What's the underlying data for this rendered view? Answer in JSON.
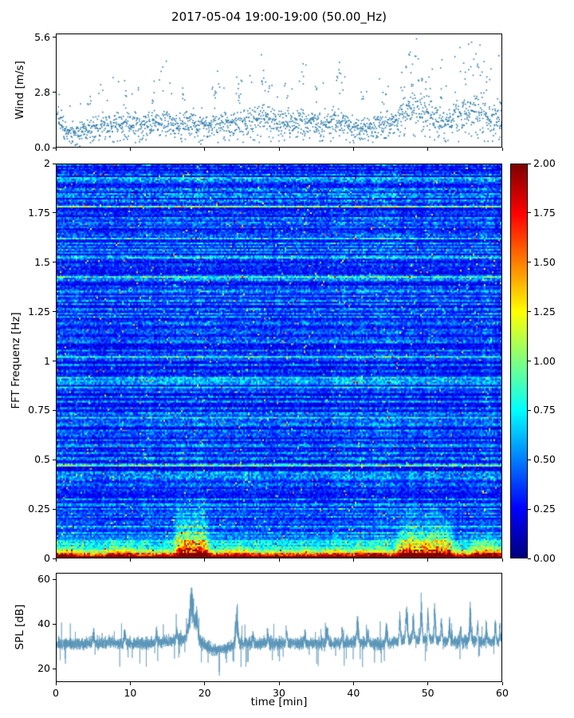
{
  "title": "2017-05-04 19:00-19:00 (50.00_Hz)",
  "xlabel": "time [min]",
  "xticks": {
    "values": [
      0,
      10,
      20,
      30,
      40,
      50,
      60
    ],
    "labels": [
      "0",
      "10",
      "20",
      "30",
      "40",
      "50",
      "60"
    ]
  },
  "chart_data": [
    {
      "type": "scatter",
      "name": "wind-speed",
      "ylabel": "Wind [m/s]",
      "xlim": [
        0,
        60
      ],
      "ylim": [
        0,
        5.8
      ],
      "yticks": {
        "values": [
          0,
          2.8,
          5.6
        ],
        "labels": [
          "0.0",
          "2.8",
          "5.6"
        ]
      },
      "marker_color": "#2878a8",
      "n_points": 1750,
      "seed": 11,
      "envelope": {
        "x": [
          0,
          1.5,
          3,
          5,
          8,
          11,
          14,
          17,
          20,
          23,
          26,
          28,
          30,
          33,
          36,
          38,
          40,
          43,
          45,
          47,
          49,
          51,
          53,
          55,
          57,
          59,
          60
        ],
        "mean": [
          2.1,
          1.0,
          1.2,
          1.4,
          1.5,
          1.6,
          1.7,
          1.6,
          1.5,
          1.6,
          1.7,
          2.1,
          1.7,
          1.8,
          1.6,
          1.9,
          1.4,
          1.5,
          1.7,
          2.4,
          2.6,
          2.0,
          1.8,
          2.4,
          2.6,
          2.0,
          1.8
        ]
      },
      "spikes": [
        {
          "x": 4.5,
          "v": 2.9
        },
        {
          "x": 9,
          "v": 2.8
        },
        {
          "x": 13,
          "v": 3.0
        },
        {
          "x": 17,
          "v": 3.2
        },
        {
          "x": 21,
          "v": 3.3
        },
        {
          "x": 24.5,
          "v": 3.4
        },
        {
          "x": 27.8,
          "v": 4.3
        },
        {
          "x": 28.3,
          "v": 3.8
        },
        {
          "x": 31,
          "v": 3.4
        },
        {
          "x": 33,
          "v": 4.6
        },
        {
          "x": 35,
          "v": 3.3
        },
        {
          "x": 38,
          "v": 4.5
        },
        {
          "x": 38.3,
          "v": 3.9
        },
        {
          "x": 41,
          "v": 2.9
        },
        {
          "x": 44,
          "v": 3.1
        },
        {
          "x": 46.5,
          "v": 4.0
        },
        {
          "x": 47.3,
          "v": 5.0
        },
        {
          "x": 48,
          "v": 4.5
        },
        {
          "x": 49,
          "v": 4.8
        },
        {
          "x": 50,
          "v": 4.2
        },
        {
          "x": 52,
          "v": 3.5
        },
        {
          "x": 55,
          "v": 4.4
        },
        {
          "x": 55.8,
          "v": 5.6
        },
        {
          "x": 56.4,
          "v": 5.0
        },
        {
          "x": 57,
          "v": 4.6
        },
        {
          "x": 58,
          "v": 3.8
        },
        {
          "x": 59.5,
          "v": 3.2
        }
      ]
    },
    {
      "type": "heatmap",
      "name": "fft-spectrogram",
      "ylabel": "FFT Frequenz [Hz]",
      "xlim": [
        0,
        60
      ],
      "ylim": [
        0,
        2
      ],
      "clim": [
        0,
        2
      ],
      "colormap": "jet",
      "yticks": {
        "values": [
          0,
          0.25,
          0.5,
          0.75,
          1,
          1.25,
          1.5,
          1.75,
          2
        ],
        "labels": [
          "0",
          "0.25",
          "0.5",
          "0.75",
          "1",
          "1.25",
          "1.5",
          "1.75",
          "2"
        ]
      },
      "colorbar": {
        "ticks": {
          "values": [
            0,
            0.25,
            0.5,
            0.75,
            1,
            1.25,
            1.5,
            1.75,
            2
          ],
          "labels": [
            "0.00",
            "0.25",
            "0.50",
            "0.75",
            "1.00",
            "1.25",
            "1.50",
            "1.75",
            "2.00"
          ]
        }
      },
      "seed": 42,
      "background": {
        "row_base_min": 0.16,
        "row_base_var": 0.38,
        "streak_prob": 0.1
      },
      "low_freq_band": {
        "amp": 1.95,
        "decay": 42,
        "amp2": 0.5,
        "decay2": 9
      },
      "bursts": [
        {
          "t0": 16.5,
          "t1": 20,
          "fmax": 0.38,
          "amp": 1.5
        },
        {
          "t0": 46.5,
          "t1": 53,
          "fmax": 0.33,
          "amp": 1.3
        },
        {
          "t0": 7.5,
          "t1": 10,
          "fmax": 0.14,
          "amp": 0.6
        },
        {
          "t0": 56.5,
          "t1": 59.5,
          "fmax": 0.18,
          "amp": 0.8
        },
        {
          "t0": 23,
          "t1": 25.5,
          "fmax": 0.12,
          "amp": 0.55
        },
        {
          "t0": 0,
          "t1": 2,
          "fmax": 0.12,
          "amp": 0.5
        },
        {
          "t0": 41,
          "t1": 44,
          "fmax": 0.12,
          "amp": 0.45
        },
        {
          "t0": 36,
          "t1": 38,
          "fmax": 0.1,
          "amp": 0.4
        }
      ]
    },
    {
      "type": "line",
      "name": "spl",
      "ylabel": "SPL [dB]",
      "xlim": [
        0,
        60
      ],
      "ylim": [
        14,
        63
      ],
      "yticks": {
        "values": [
          20,
          40,
          60
        ],
        "labels": [
          "20",
          "40",
          "60"
        ]
      },
      "line_color": "#5795b7",
      "n_points": 5600,
      "seed": 99,
      "noise_sd": 2.6,
      "envelope": {
        "x": [
          0,
          3,
          8,
          12,
          15,
          17,
          18.5,
          19.5,
          21,
          22.5,
          23.5,
          24.5,
          26,
          30,
          35,
          40,
          44,
          46,
          48,
          50,
          52,
          54,
          56,
          58,
          60
        ],
        "base": [
          31,
          31,
          31.5,
          31,
          32,
          33,
          36.5,
          31.5,
          28.5,
          28.5,
          30,
          31.5,
          31,
          31.5,
          31,
          31.5,
          31,
          32,
          33,
          33,
          32.5,
          32,
          32.5,
          32,
          32
        ]
      },
      "spikes": [
        {
          "x": 5,
          "a": 6,
          "w": 0.1
        },
        {
          "x": 9.2,
          "a": 6,
          "w": 0.1
        },
        {
          "x": 13.5,
          "a": 7,
          "w": 0.1
        },
        {
          "x": 16.2,
          "a": 6,
          "w": 0.08
        },
        {
          "x": 18.2,
          "a": 21,
          "w": 0.3
        },
        {
          "x": 18.9,
          "a": 11,
          "w": 0.15
        },
        {
          "x": 24.3,
          "a": 18,
          "w": 0.15
        },
        {
          "x": 26.5,
          "a": 6,
          "w": 0.08
        },
        {
          "x": 28.5,
          "a": 7,
          "w": 0.1
        },
        {
          "x": 31,
          "a": 6,
          "w": 0.08
        },
        {
          "x": 33.5,
          "a": 7,
          "w": 0.08
        },
        {
          "x": 36.5,
          "a": 8,
          "w": 0.1
        },
        {
          "x": 38.5,
          "a": 7,
          "w": 0.08
        },
        {
          "x": 40.6,
          "a": 14,
          "w": 0.12
        },
        {
          "x": 42,
          "a": 7,
          "w": 0.08
        },
        {
          "x": 44.5,
          "a": 9,
          "w": 0.1
        },
        {
          "x": 46.3,
          "a": 12,
          "w": 0.1
        },
        {
          "x": 47.2,
          "a": 20,
          "w": 0.12
        },
        {
          "x": 48.1,
          "a": 12,
          "w": 0.1
        },
        {
          "x": 49.2,
          "a": 22,
          "w": 0.1
        },
        {
          "x": 50.1,
          "a": 13,
          "w": 0.1
        },
        {
          "x": 51,
          "a": 19,
          "w": 0.1
        },
        {
          "x": 51.9,
          "a": 12,
          "w": 0.1
        },
        {
          "x": 53,
          "a": 10,
          "w": 0.1
        },
        {
          "x": 54.5,
          "a": 8,
          "w": 0.08
        },
        {
          "x": 55.8,
          "a": 17,
          "w": 0.1
        },
        {
          "x": 56.8,
          "a": 10,
          "w": 0.08
        },
        {
          "x": 58,
          "a": 8,
          "w": 0.08
        },
        {
          "x": 59.2,
          "a": 11,
          "w": 0.1
        },
        {
          "x": 59.8,
          "a": 9,
          "w": 0.08
        }
      ]
    }
  ]
}
